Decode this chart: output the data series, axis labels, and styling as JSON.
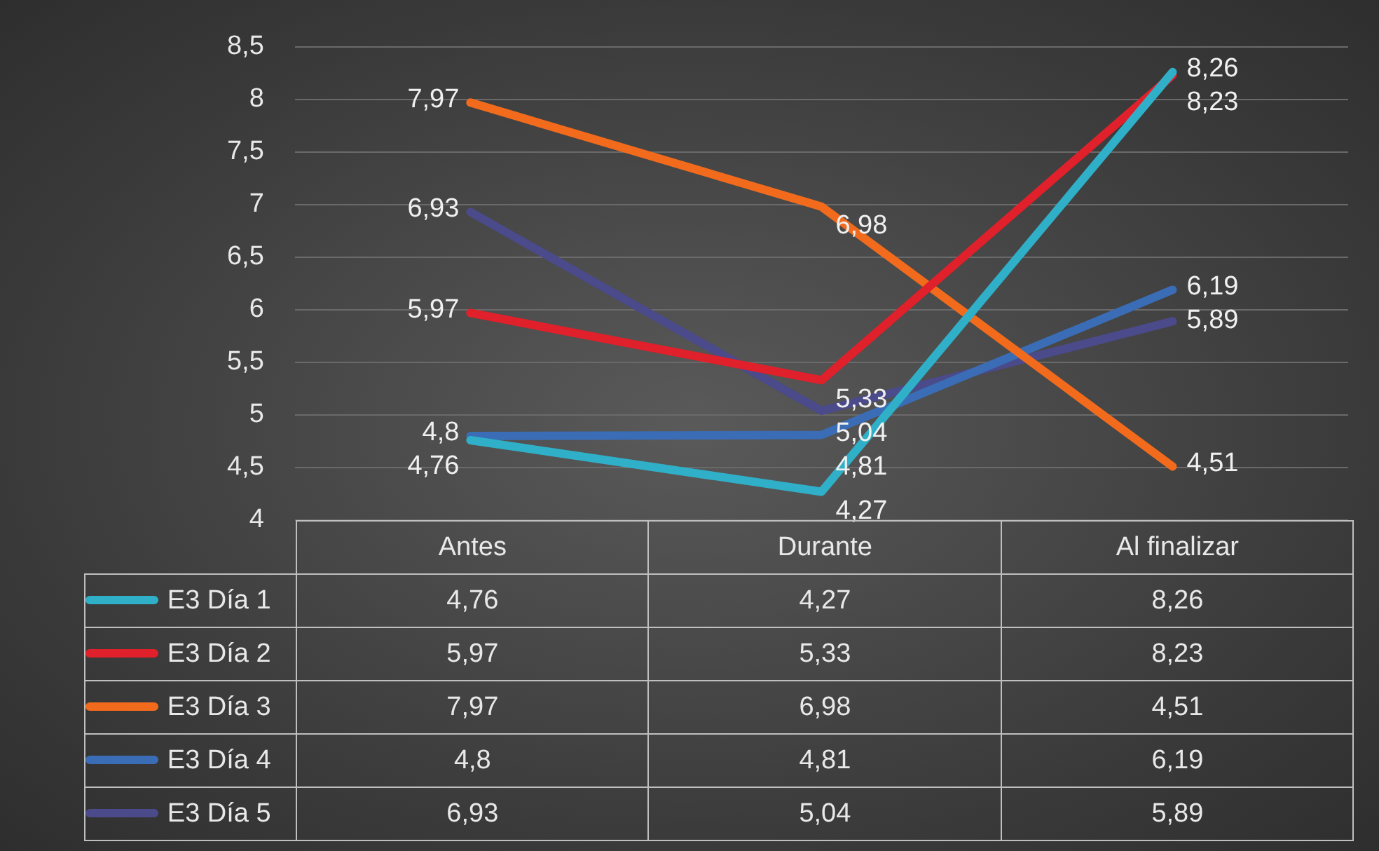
{
  "chart_data": {
    "type": "line",
    "categories": [
      "Antes",
      "Durante",
      "Al finalizar"
    ],
    "series": [
      {
        "name": "E3 Día 1",
        "color": "#2fb0c8",
        "values": [
          4.76,
          4.27,
          8.26
        ],
        "value_labels": [
          "4,76",
          "4,27",
          "8,26"
        ]
      },
      {
        "name": "E3 Día 2",
        "color": "#e0202a",
        "values": [
          5.97,
          5.33,
          8.23
        ],
        "value_labels": [
          "5,97",
          "5,33",
          "8,23"
        ]
      },
      {
        "name": "E3 Día 3",
        "color": "#f26b1d",
        "values": [
          7.97,
          6.98,
          4.51
        ],
        "value_labels": [
          "7,97",
          "6,98",
          "4,51"
        ]
      },
      {
        "name": "E3 Día 4",
        "color": "#3a6db5",
        "values": [
          4.8,
          4.81,
          6.19
        ],
        "value_labels": [
          "4,8",
          "4,81",
          "6,19"
        ]
      },
      {
        "name": "E3 Día 5",
        "color": "#4b4a8a",
        "values": [
          6.93,
          5.04,
          5.89
        ],
        "value_labels": [
          "6,93",
          "5,04",
          "5,89"
        ]
      }
    ],
    "ylim": [
      4,
      8.5
    ],
    "yticks": [
      4,
      {
        "value": 4.5,
        "label": "4,5"
      },
      5,
      {
        "value": 5.5,
        "label": "5,5"
      },
      6,
      {
        "value": 6.5,
        "label": "6,5"
      },
      7,
      {
        "value": 7.5,
        "label": "7,5"
      },
      8,
      {
        "value": 8.5,
        "label": "8,5"
      }
    ],
    "grid": "y",
    "legend": "bottom",
    "marker": "none",
    "line_style": "solid"
  }
}
